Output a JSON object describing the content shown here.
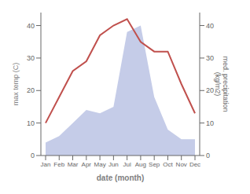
{
  "chart_data": {
    "type": "line",
    "categories": [
      "Jan",
      "Feb",
      "Mar",
      "Apr",
      "May",
      "Jun",
      "Jul",
      "Aug",
      "Sep",
      "Oct",
      "Nov",
      "Dec"
    ],
    "series": [
      {
        "type": "area",
        "axis": "y2",
        "color": "#c5cce8",
        "values": [
          4,
          6,
          10,
          14,
          13,
          15,
          38,
          40,
          18,
          8,
          5,
          5
        ]
      },
      {
        "type": "line",
        "axis": "y",
        "color": "#c0504d",
        "values": [
          10,
          18,
          26,
          29,
          37,
          40,
          42,
          35,
          32,
          32,
          22,
          13
        ]
      }
    ],
    "xlabel": "date (month)",
    "ylabel": "max temp (C)",
    "y2label": "med. precipitation\n(kg/m2)",
    "ylim": [
      0,
      44
    ],
    "yticks": [
      0,
      10,
      20,
      30,
      40
    ],
    "y2lim": [
      0,
      44
    ],
    "y2ticks": [
      0,
      10,
      20,
      30,
      40
    ],
    "grid": false
  }
}
